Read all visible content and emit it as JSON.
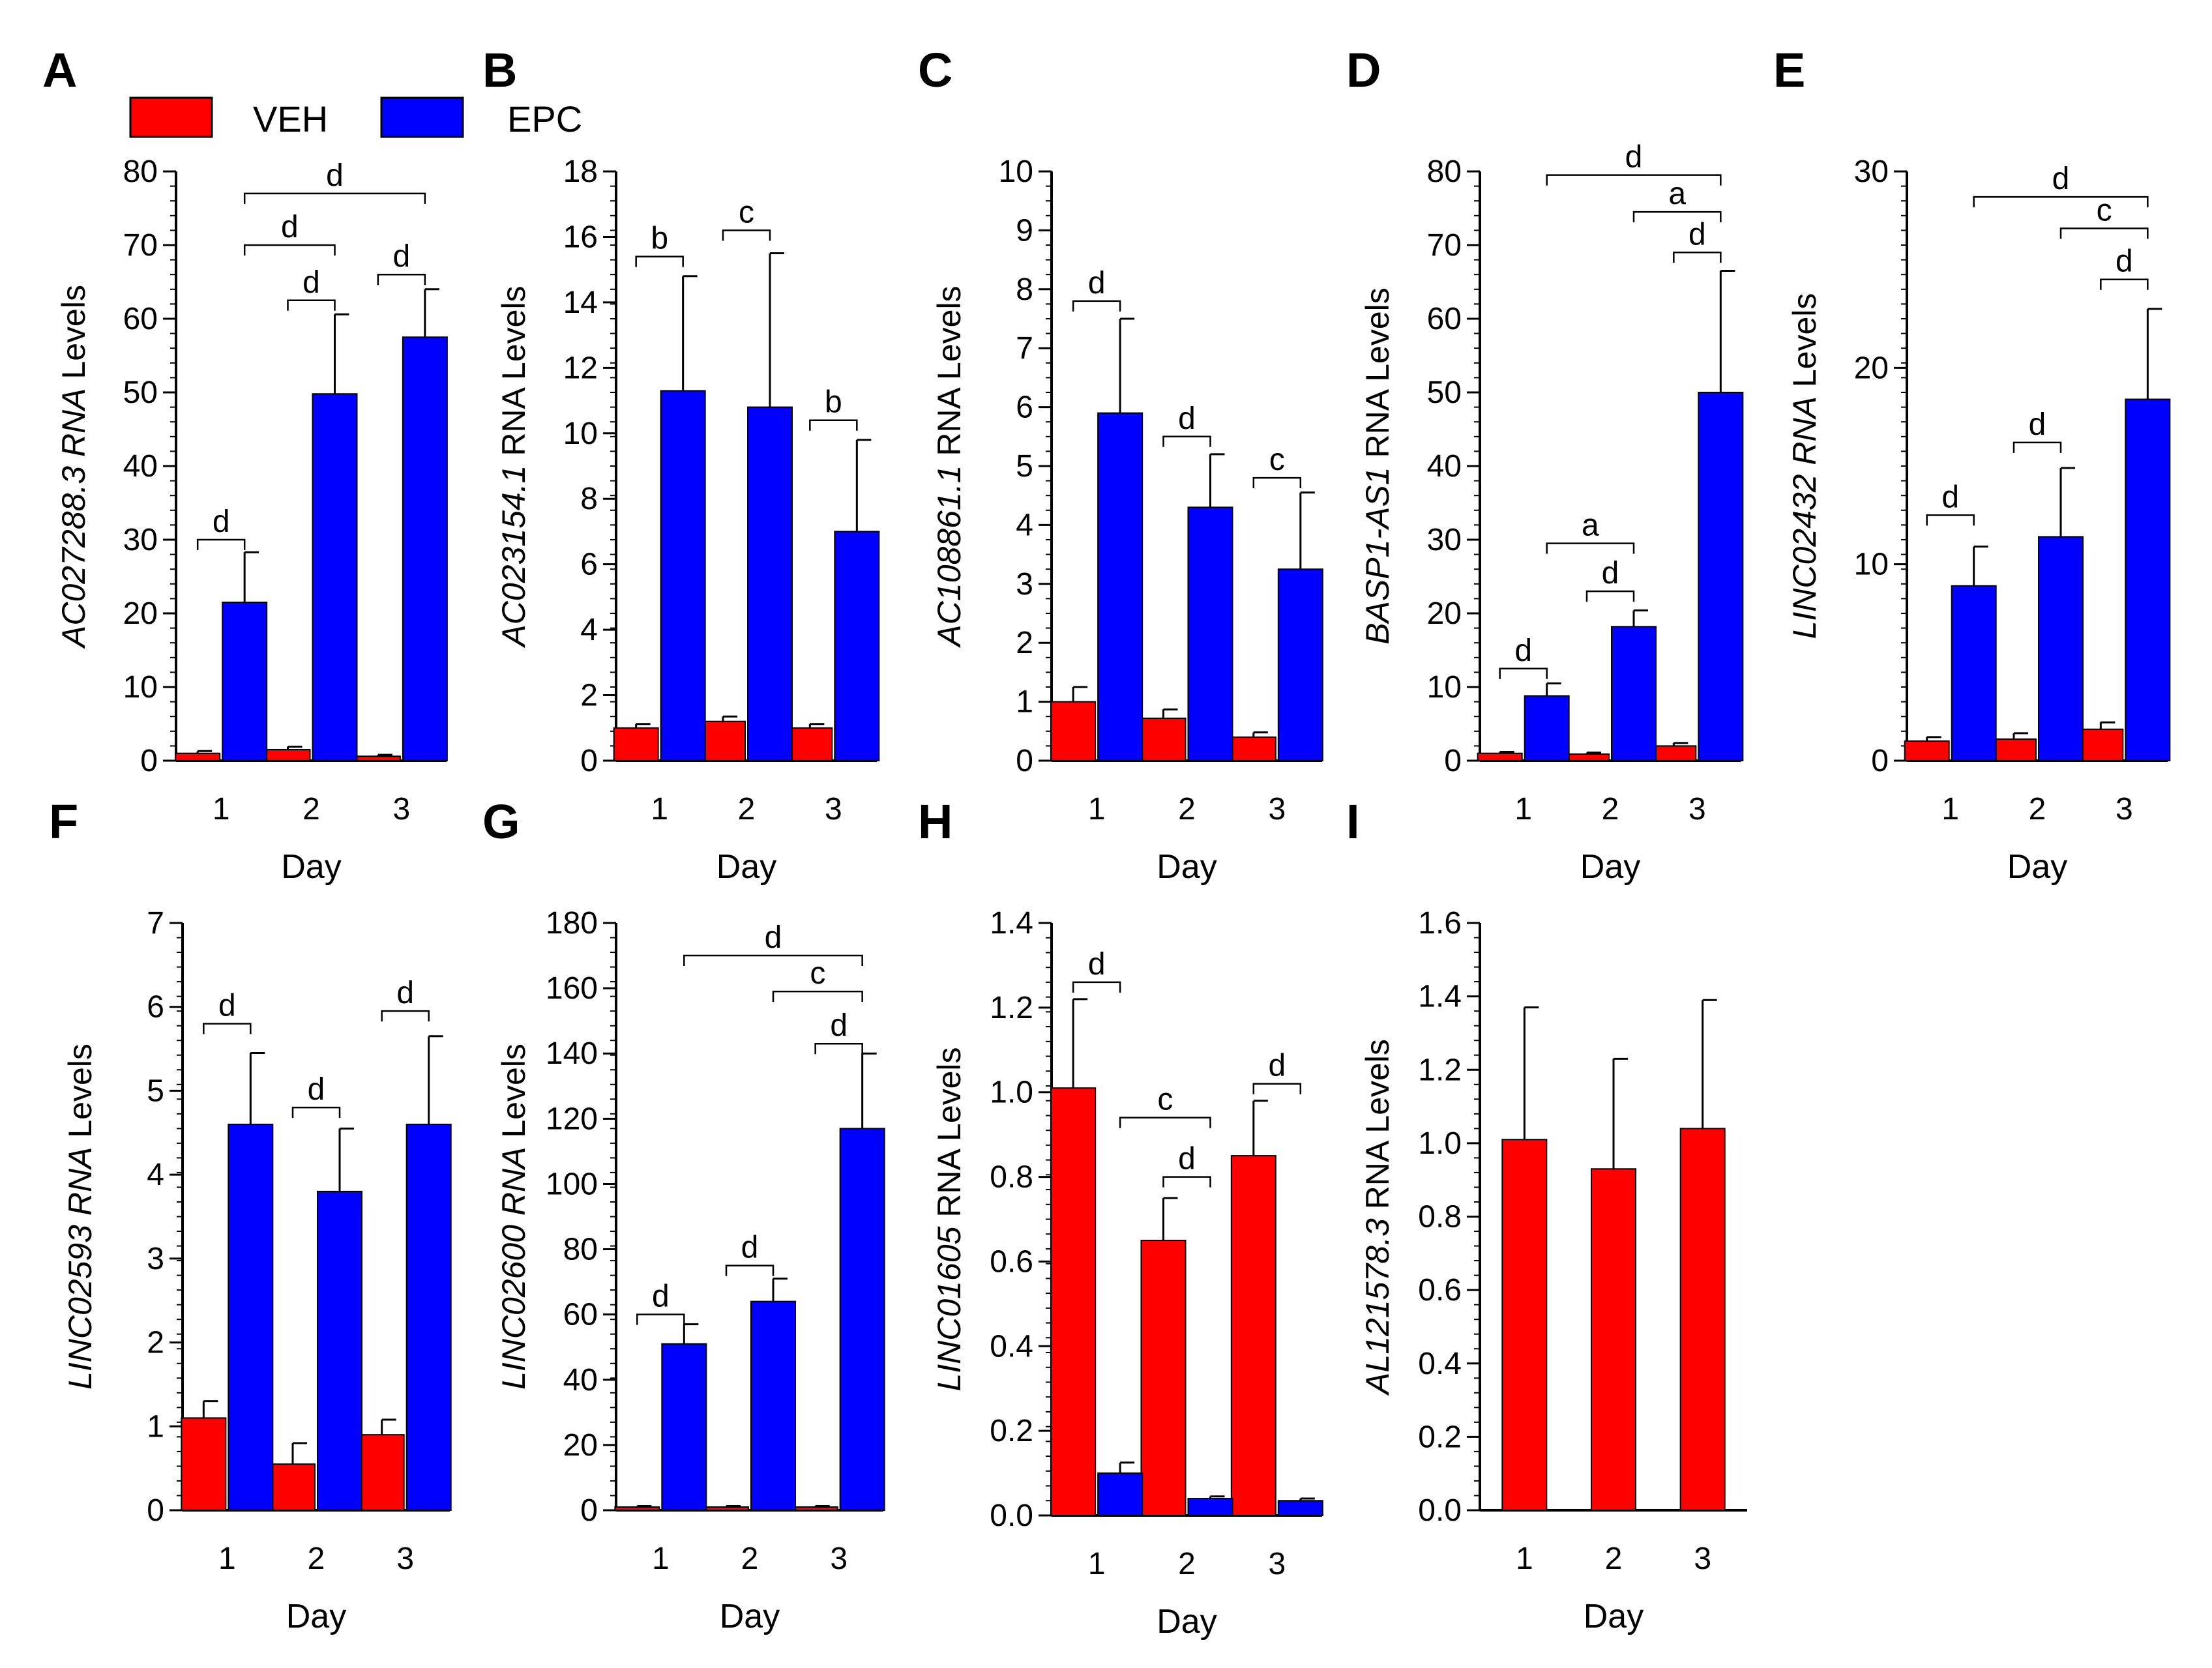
{
  "legend": [
    {
      "label": "VEH",
      "color": "#ff0000"
    },
    {
      "label": "EPC",
      "color": "#0000ff"
    }
  ],
  "chart_data": [
    {
      "panel": "A",
      "type": "bar",
      "ylabel_italic": "AC027288.3 RNA",
      "ylabel_plain": " Levels",
      "xlabel": "Day",
      "categories": [
        "1",
        "2",
        "3"
      ],
      "ylim": [
        0,
        80
      ],
      "yticks": [
        0,
        10,
        20,
        30,
        40,
        50,
        60,
        70,
        80
      ],
      "series": [
        {
          "name": "VEH",
          "values": [
            1,
            1.5,
            0.6
          ],
          "errors": [
            0.3,
            0.4,
            0.2
          ]
        },
        {
          "name": "EPC",
          "values": [
            21.5,
            49.8,
            57.5
          ],
          "errors": [
            6.8,
            10.8,
            6.5
          ]
        }
      ],
      "annotations": [
        {
          "label": "d",
          "from": [
            0,
            "VEH"
          ],
          "to": [
            0,
            "EPC"
          ],
          "y": 30
        },
        {
          "label": "d",
          "from": [
            1,
            "VEH"
          ],
          "to": [
            1,
            "EPC"
          ],
          "y": 62.5
        },
        {
          "label": "d",
          "from": [
            2,
            "VEH"
          ],
          "to": [
            2,
            "EPC"
          ],
          "y": 66
        },
        {
          "label": "d",
          "from": [
            0,
            "EPC"
          ],
          "to": [
            1,
            "EPC"
          ],
          "y": 70
        },
        {
          "label": "d",
          "from": [
            0,
            "EPC"
          ],
          "to": [
            2,
            "EPC"
          ],
          "y": 77
        }
      ]
    },
    {
      "panel": "B",
      "type": "bar",
      "ylabel_italic": "AC023154.1",
      "ylabel_plain": " RNA Levels",
      "xlabel": "Day",
      "categories": [
        "1",
        "2",
        "3"
      ],
      "ylim": [
        0,
        18
      ],
      "yticks": [
        0,
        2,
        4,
        6,
        8,
        10,
        12,
        14,
        16,
        18
      ],
      "series": [
        {
          "name": "VEH",
          "values": [
            1,
            1.2,
            1
          ],
          "errors": [
            0.12,
            0.15,
            0.12
          ]
        },
        {
          "name": "EPC",
          "values": [
            11.3,
            10.8,
            7
          ],
          "errors": [
            3.5,
            4.7,
            2.8
          ]
        }
      ],
      "annotations": [
        {
          "label": "b",
          "from": [
            0,
            "VEH"
          ],
          "to": [
            0,
            "EPC"
          ],
          "y": 15.4
        },
        {
          "label": "c",
          "from": [
            1,
            "VEH"
          ],
          "to": [
            1,
            "EPC"
          ],
          "y": 16.2
        },
        {
          "label": "b",
          "from": [
            2,
            "VEH"
          ],
          "to": [
            2,
            "EPC"
          ],
          "y": 10.4
        }
      ]
    },
    {
      "panel": "C",
      "type": "bar",
      "ylabel_italic": "AC108861.1",
      "ylabel_plain": " RNA Levels",
      "xlabel": "Day",
      "categories": [
        "1",
        "2",
        "3"
      ],
      "ylim": [
        0,
        10
      ],
      "yticks": [
        0,
        1,
        2,
        3,
        4,
        5,
        6,
        7,
        8,
        9,
        10
      ],
      "series": [
        {
          "name": "VEH",
          "values": [
            1,
            0.72,
            0.4
          ],
          "errors": [
            0.25,
            0.15,
            0.08
          ]
        },
        {
          "name": "EPC",
          "values": [
            5.9,
            4.3,
            3.25
          ],
          "errors": [
            1.6,
            0.9,
            1.3
          ]
        }
      ],
      "annotations": [
        {
          "label": "d",
          "from": [
            0,
            "VEH"
          ],
          "to": [
            0,
            "EPC"
          ],
          "y": 7.8
        },
        {
          "label": "d",
          "from": [
            1,
            "VEH"
          ],
          "to": [
            1,
            "EPC"
          ],
          "y": 5.5
        },
        {
          "label": "c",
          "from": [
            2,
            "VEH"
          ],
          "to": [
            2,
            "EPC"
          ],
          "y": 4.8
        }
      ]
    },
    {
      "panel": "D",
      "type": "bar",
      "ylabel_italic": "BASP1-AS1",
      "ylabel_plain": " RNA Levels",
      "xlabel": "Day",
      "categories": [
        "1",
        "2",
        "3"
      ],
      "ylim": [
        0,
        80
      ],
      "yticks": [
        0,
        10,
        20,
        30,
        40,
        50,
        60,
        70,
        80
      ],
      "series": [
        {
          "name": "VEH",
          "values": [
            1,
            0.9,
            2
          ],
          "errors": [
            0.2,
            0.2,
            0.4
          ]
        },
        {
          "name": "EPC",
          "values": [
            8.8,
            18.2,
            50
          ],
          "errors": [
            1.7,
            2.2,
            16.5
          ]
        }
      ],
      "annotations": [
        {
          "label": "d",
          "from": [
            0,
            "VEH"
          ],
          "to": [
            0,
            "EPC"
          ],
          "y": 12.5
        },
        {
          "label": "d",
          "from": [
            1,
            "VEH"
          ],
          "to": [
            1,
            "EPC"
          ],
          "y": 23
        },
        {
          "label": "a",
          "from": [
            0,
            "EPC"
          ],
          "to": [
            1,
            "EPC"
          ],
          "y": 29.5
        },
        {
          "label": "d",
          "from": [
            2,
            "VEH"
          ],
          "to": [
            2,
            "EPC"
          ],
          "y": 69
        },
        {
          "label": "a",
          "from": [
            1,
            "EPC"
          ],
          "to": [
            2,
            "EPC"
          ],
          "y": 74.5
        },
        {
          "label": "d",
          "from": [
            0,
            "EPC"
          ],
          "to": [
            2,
            "EPC"
          ],
          "y": 79.5
        }
      ]
    },
    {
      "panel": "E",
      "type": "bar",
      "ylabel_italic": "LINC02432 RNA",
      "ylabel_plain": " Levels",
      "xlabel": "Day",
      "categories": [
        "1",
        "2",
        "3"
      ],
      "ylim": [
        0,
        30
      ],
      "yticks": [
        0,
        10,
        20,
        30
      ],
      "series": [
        {
          "name": "VEH",
          "values": [
            1,
            1.1,
            1.6
          ],
          "errors": [
            0.2,
            0.3,
            0.35
          ]
        },
        {
          "name": "EPC",
          "values": [
            8.9,
            11.4,
            18.4
          ],
          "errors": [
            2,
            3.5,
            4.6
          ]
        }
      ],
      "annotations": [
        {
          "label": "d",
          "from": [
            0,
            "VEH"
          ],
          "to": [
            0,
            "EPC"
          ],
          "y": 12.5
        },
        {
          "label": "d",
          "from": [
            1,
            "VEH"
          ],
          "to": [
            1,
            "EPC"
          ],
          "y": 16.2
        },
        {
          "label": "d",
          "from": [
            2,
            "VEH"
          ],
          "to": [
            2,
            "EPC"
          ],
          "y": 24.5
        },
        {
          "label": "c",
          "from": [
            1,
            "EPC"
          ],
          "to": [
            2,
            "EPC"
          ],
          "y": 27.1
        },
        {
          "label": "d",
          "from": [
            0,
            "EPC"
          ],
          "to": [
            2,
            "EPC"
          ],
          "y": 28.7
        }
      ]
    },
    {
      "panel": "F",
      "type": "bar",
      "ylabel_italic": "LINC02593 RNA",
      "ylabel_plain": " Levels",
      "xlabel": "Day",
      "categories": [
        "1",
        "2",
        "3"
      ],
      "ylim": [
        0,
        7
      ],
      "yticks": [
        0,
        1,
        2,
        3,
        4,
        5,
        6,
        7
      ],
      "series": [
        {
          "name": "VEH",
          "values": [
            1.1,
            0.55,
            0.9
          ],
          "errors": [
            0.2,
            0.25,
            0.18
          ]
        },
        {
          "name": "EPC",
          "values": [
            4.6,
            3.8,
            4.6
          ],
          "errors": [
            0.85,
            0.75,
            1.05
          ]
        }
      ],
      "annotations": [
        {
          "label": "d",
          "from": [
            0,
            "VEH"
          ],
          "to": [
            0,
            "EPC"
          ],
          "y": 5.8
        },
        {
          "label": "d",
          "from": [
            1,
            "VEH"
          ],
          "to": [
            1,
            "EPC"
          ],
          "y": 4.8
        },
        {
          "label": "d",
          "from": [
            2,
            "VEH"
          ],
          "to": [
            2,
            "EPC"
          ],
          "y": 5.95
        }
      ]
    },
    {
      "panel": "G",
      "type": "bar",
      "ylabel_italic": "LINC02600 RNA",
      "ylabel_plain": " Levels",
      "xlabel": "Day",
      "categories": [
        "1",
        "2",
        "3"
      ],
      "ylim": [
        0,
        180
      ],
      "yticks": [
        0,
        20,
        40,
        60,
        80,
        100,
        120,
        140,
        160,
        180
      ],
      "series": [
        {
          "name": "VEH",
          "values": [
            1,
            1,
            1
          ],
          "errors": [
            0.3,
            0.3,
            0.3
          ]
        },
        {
          "name": "EPC",
          "values": [
            51,
            64,
            117
          ],
          "errors": [
            6,
            7,
            23
          ]
        }
      ],
      "annotations": [
        {
          "label": "d",
          "from": [
            0,
            "VEH"
          ],
          "to": [
            0,
            "EPC"
          ],
          "y": 60
        },
        {
          "label": "d",
          "from": [
            1,
            "VEH"
          ],
          "to": [
            1,
            "EPC"
          ],
          "y": 75
        },
        {
          "label": "d",
          "from": [
            2,
            "VEH"
          ],
          "to": [
            2,
            "EPC"
          ],
          "y": 143
        },
        {
          "label": "c",
          "from": [
            1,
            "EPC"
          ],
          "to": [
            2,
            "EPC"
          ],
          "y": 159
        },
        {
          "label": "d",
          "from": [
            0,
            "EPC"
          ],
          "to": [
            2,
            "EPC"
          ],
          "y": 170
        }
      ]
    },
    {
      "panel": "H",
      "type": "bar",
      "ylabel_italic": "LINC01605",
      "ylabel_plain": " RNA Levels",
      "xlabel": "Day",
      "categories": [
        "1",
        "2",
        "3"
      ],
      "ylim": [
        0,
        1.4
      ],
      "yticks": [
        "0.0",
        "0.2",
        "0.4",
        "0.6",
        "0.8",
        "1.0",
        "1.2",
        "1.4"
      ],
      "series": [
        {
          "name": "VEH",
          "values": [
            1.01,
            0.65,
            0.85
          ],
          "errors": [
            0.21,
            0.1,
            0.13
          ]
        },
        {
          "name": "EPC",
          "values": [
            0.1,
            0.04,
            0.035
          ],
          "errors": [
            0.025,
            0.005,
            0.005
          ]
        }
      ],
      "annotations": [
        {
          "label": "d",
          "from": [
            0,
            "VEH"
          ],
          "to": [
            0,
            "EPC"
          ],
          "y": 1.26
        },
        {
          "label": "c",
          "from": [
            0,
            "EPC"
          ],
          "to": [
            1,
            "EPC"
          ],
          "y": 0.94
        },
        {
          "label": "d",
          "from": [
            1,
            "VEH"
          ],
          "to": [
            1,
            "EPC"
          ],
          "y": 0.8
        },
        {
          "label": "d",
          "from": [
            2,
            "VEH"
          ],
          "to": [
            2,
            "EPC"
          ],
          "y": 1.02
        }
      ]
    },
    {
      "panel": "I",
      "type": "bar",
      "ylabel_italic": "AL121578.3",
      "ylabel_plain": " RNA Levels",
      "xlabel": "Day",
      "categories": [
        "1",
        "2",
        "3"
      ],
      "ylim": [
        0,
        1.6
      ],
      "yticks": [
        "0.0",
        "0.2",
        "0.4",
        "0.6",
        "0.8",
        "1.0",
        "1.2",
        "1.4",
        "1.6"
      ],
      "series": [
        {
          "name": "VEH",
          "values": [
            1.01,
            0.93,
            1.04
          ],
          "errors": [
            0.36,
            0.3,
            0.35
          ]
        }
      ],
      "annotations": []
    }
  ]
}
